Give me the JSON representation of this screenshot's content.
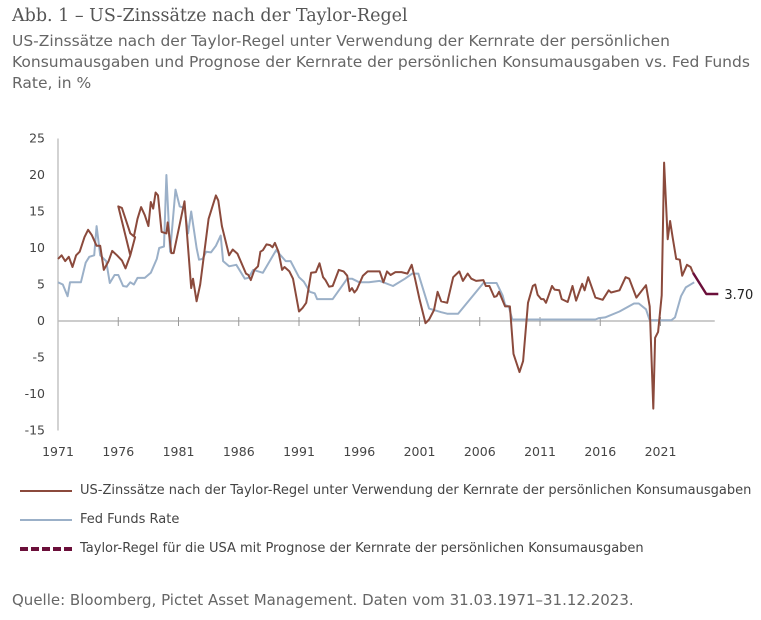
{
  "title": "Abb. 1 – US-Zinssätze nach der Taylor-Regel",
  "subtitle": "US-Zinssätze nach der Taylor-Regel unter Verwendung der Kernrate der persönlichen Konsumausgaben und Prognose der Kernrate der persönlichen Konsumausgaben vs. Fed Funds Rate, in %",
  "source": "Quelle: Bloomberg, Pictet Asset Management. Daten vom 31.03.1971–31.12.2023.",
  "chart_data": {
    "type": "line",
    "title": "Abb. 1 – US-Zinssätze nach der Taylor-Regel",
    "xlabel": "",
    "ylabel": "",
    "xlim": [
      1971,
      2026
    ],
    "ylim": [
      -15,
      25
    ],
    "x_ticks": [
      "1971",
      "1976",
      "1981",
      "1986",
      "1991",
      "1996",
      "2001",
      "2006",
      "2011",
      "2016",
      "2021"
    ],
    "y_ticks": [
      "25",
      "20",
      "15",
      "10",
      "5",
      "0",
      "-5",
      "-10",
      "-15"
    ],
    "grid": false,
    "legend_placement": "bottom",
    "end_label": "3.70",
    "series": [
      {
        "name": "US-Zinssätze nach der Taylor-Regel unter Verwendung der Kernrate der persönlichen Konsumausgaben",
        "color": "#8b4a3c",
        "style": "solid",
        "points": [
          [
            1971.0,
            8.5
          ],
          [
            1971.3,
            9
          ],
          [
            1971.6,
            8.2
          ],
          [
            1971.9,
            8.8
          ],
          [
            1972.2,
            7.4
          ],
          [
            1972.5,
            9
          ],
          [
            1972.8,
            9.5
          ],
          [
            1973.2,
            11.5
          ],
          [
            1973.5,
            12.5
          ],
          [
            1973.8,
            11.8
          ],
          [
            1974.2,
            10.3
          ],
          [
            1974.5,
            10.3
          ],
          [
            1974.8,
            7
          ],
          [
            1975.2,
            8.2
          ],
          [
            1975.5,
            9.6
          ],
          [
            1975.9,
            9
          ],
          [
            1976.3,
            8.3
          ],
          [
            1976.6,
            7.2
          ],
          [
            1977.0,
            9
          ],
          [
            1977.4,
            11.5
          ],
          [
            1977.0,
            9
          ],
          [
            1976.0,
            15.7
          ],
          [
            1976.3,
            15.5
          ],
          [
            1976.7,
            13.5
          ],
          [
            1977.0,
            12
          ],
          [
            1977.3,
            11.6
          ],
          [
            1977.6,
            14
          ],
          [
            1977.9,
            15.6
          ],
          [
            1978.2,
            14.5
          ],
          [
            1978.5,
            13
          ],
          [
            1978.7,
            16.3
          ],
          [
            1978.9,
            15.4
          ],
          [
            1979.1,
            17.6
          ],
          [
            1979.3,
            17.2
          ],
          [
            1979.6,
            12.2
          ],
          [
            1980.0,
            12.0
          ],
          [
            1980.1,
            13.5
          ],
          [
            1980.4,
            9.3
          ],
          [
            1980.6,
            9.3
          ],
          [
            1981.5,
            16.4
          ],
          [
            1982.05,
            4.5
          ],
          [
            1982.2,
            5.8
          ],
          [
            1982.5,
            2.7
          ],
          [
            1982.8,
            5
          ],
          [
            1983.5,
            14
          ],
          [
            1984.1,
            17.2
          ],
          [
            1984.3,
            16.5
          ],
          [
            1984.6,
            13
          ],
          [
            1985.2,
            9
          ],
          [
            1985.5,
            9.8
          ],
          [
            1985.9,
            9.2
          ],
          [
            1986.6,
            6.5
          ],
          [
            1986.8,
            6.3
          ],
          [
            1987.0,
            5.6
          ],
          [
            1987.3,
            7
          ],
          [
            1987.6,
            7.5
          ],
          [
            1987.8,
            9.5
          ],
          [
            1988.0,
            9.7
          ],
          [
            1988.3,
            10.5
          ],
          [
            1988.6,
            10.4
          ],
          [
            1988.8,
            10.1
          ],
          [
            1989.0,
            10.7
          ],
          [
            1989.3,
            9.5
          ],
          [
            1989.6,
            7
          ],
          [
            1989.8,
            7.4
          ],
          [
            1990.2,
            6.8
          ],
          [
            1990.5,
            5.8
          ],
          [
            1991.0,
            1.3
          ],
          [
            1991.3,
            1.8
          ],
          [
            1991.6,
            2.5
          ],
          [
            1992.0,
            6.6
          ],
          [
            1992.4,
            6.7
          ],
          [
            1992.7,
            7.9
          ],
          [
            1993.0,
            6
          ],
          [
            1993.2,
            5.6
          ],
          [
            1993.5,
            4.7
          ],
          [
            1993.8,
            4.8
          ],
          [
            1994.3,
            7
          ],
          [
            1994.7,
            6.8
          ],
          [
            1995.0,
            6.2
          ],
          [
            1995.2,
            4.1
          ],
          [
            1995.4,
            4.5
          ],
          [
            1995.6,
            3.9
          ],
          [
            1995.8,
            4.3
          ],
          [
            1996.3,
            6.2
          ],
          [
            1996.7,
            6.8
          ],
          [
            1997.7,
            6.8
          ],
          [
            1998.0,
            5.3
          ],
          [
            1998.3,
            6.8
          ],
          [
            1998.6,
            6.3
          ],
          [
            1999.0,
            6.7
          ],
          [
            1999.5,
            6.7
          ],
          [
            2000.0,
            6.5
          ],
          [
            2000.35,
            7.7
          ],
          [
            2000.6,
            6
          ],
          [
            2001.0,
            3
          ],
          [
            2001.5,
            -0.3
          ],
          [
            2001.8,
            0.2
          ],
          [
            2002.2,
            1.5
          ],
          [
            2002.5,
            4
          ],
          [
            2002.8,
            2.7
          ],
          [
            2003.3,
            2.5
          ],
          [
            2003.8,
            6
          ],
          [
            2004.3,
            6.8
          ],
          [
            2004.6,
            5.5
          ],
          [
            2005.0,
            6.5
          ],
          [
            2005.3,
            5.8
          ],
          [
            2005.7,
            5.5
          ],
          [
            2006.3,
            5.6
          ],
          [
            2006.5,
            4.8
          ],
          [
            2006.8,
            4.8
          ],
          [
            2007.2,
            3.3
          ],
          [
            2007.4,
            3.4
          ],
          [
            2007.6,
            4
          ],
          [
            2008.1,
            2
          ],
          [
            2008.5,
            2
          ],
          [
            2008.8,
            -4.5
          ],
          [
            2009.3,
            -7
          ],
          [
            2009.6,
            -5.5
          ],
          [
            2010.0,
            2.5
          ],
          [
            2010.4,
            4.8
          ],
          [
            2010.6,
            5
          ],
          [
            2010.8,
            3.6
          ],
          [
            2011.1,
            3
          ],
          [
            2011.3,
            3
          ],
          [
            2011.5,
            2.5
          ],
          [
            2012.0,
            4.8
          ],
          [
            2012.2,
            4.3
          ],
          [
            2012.6,
            4.2
          ],
          [
            2012.8,
            3
          ],
          [
            2013.3,
            2.6
          ],
          [
            2013.7,
            4.8
          ],
          [
            2014.0,
            2.8
          ],
          [
            2014.5,
            5.1
          ],
          [
            2014.7,
            4.2
          ],
          [
            2015.0,
            6
          ],
          [
            2015.6,
            3.2
          ],
          [
            2016.2,
            2.9
          ],
          [
            2016.7,
            4.2
          ],
          [
            2016.9,
            3.9
          ],
          [
            2017.6,
            4.2
          ],
          [
            2018.1,
            6
          ],
          [
            2018.4,
            5.8
          ],
          [
            2019.0,
            3.2
          ],
          [
            2019.8,
            4.9
          ],
          [
            2020.1,
            2
          ],
          [
            2020.4,
            -12
          ],
          [
            2020.55,
            -2.3
          ],
          [
            2020.8,
            -1.5
          ],
          [
            2021.1,
            3.5
          ],
          [
            2021.3,
            21.7
          ],
          [
            2021.6,
            11.2
          ],
          [
            2021.8,
            13.7
          ],
          [
            2022.0,
            11.5
          ],
          [
            2022.3,
            8.5
          ],
          [
            2022.6,
            8.4
          ],
          [
            2022.8,
            6.2
          ],
          [
            2023.2,
            7.7
          ],
          [
            2023.5,
            7.4
          ],
          [
            2023.7,
            6.6
          ]
        ]
      },
      {
        "name": "Fed Funds Rate",
        "color": "#9bb0c8",
        "style": "solid",
        "points": [
          [
            1971.0,
            5.3
          ],
          [
            1971.4,
            5.0
          ],
          [
            1971.8,
            3.4
          ],
          [
            1972.0,
            5.3
          ],
          [
            1972.9,
            5.3
          ],
          [
            1973.3,
            8
          ],
          [
            1973.6,
            8.8
          ],
          [
            1974.0,
            9
          ],
          [
            1974.2,
            13
          ],
          [
            1974.5,
            9
          ],
          [
            1975.0,
            8.2
          ],
          [
            1975.3,
            5.2
          ],
          [
            1975.7,
            6.3
          ],
          [
            1976.0,
            6.3
          ],
          [
            1976.4,
            4.8
          ],
          [
            1976.7,
            4.7
          ],
          [
            1977.0,
            5.3
          ],
          [
            1977.3,
            5.0
          ],
          [
            1977.6,
            5.9
          ],
          [
            1978.2,
            5.9
          ],
          [
            1978.7,
            6.6
          ],
          [
            1979.2,
            8.5
          ],
          [
            1979.4,
            10
          ],
          [
            1979.8,
            10.2
          ],
          [
            1980.0,
            20
          ],
          [
            1980.3,
            9.5
          ],
          [
            1980.75,
            18
          ],
          [
            1981.1,
            15.7
          ],
          [
            1981.5,
            15.5
          ],
          [
            1981.8,
            12
          ],
          [
            1982.05,
            15
          ],
          [
            1982.5,
            10
          ],
          [
            1982.7,
            8.4
          ],
          [
            1983.0,
            8.5
          ],
          [
            1983.3,
            9.5
          ],
          [
            1983.7,
            9.4
          ],
          [
            1984.1,
            10.3
          ],
          [
            1984.5,
            11.7
          ],
          [
            1984.7,
            8.2
          ],
          [
            1985.2,
            7.5
          ],
          [
            1985.8,
            7.7
          ],
          [
            1986.5,
            5.8
          ],
          [
            1986.8,
            5.9
          ],
          [
            1987.2,
            7
          ],
          [
            1988.0,
            6.6
          ],
          [
            1989.1,
            9.7
          ],
          [
            1989.9,
            8.2
          ],
          [
            1990.3,
            8.2
          ],
          [
            1991.0,
            6
          ],
          [
            1991.4,
            5.4
          ],
          [
            1991.9,
            4
          ],
          [
            1992.3,
            3.8
          ],
          [
            1992.5,
            3.0
          ],
          [
            1993.8,
            3.0
          ],
          [
            1995.0,
            5.8
          ],
          [
            1995.4,
            5.8
          ],
          [
            1996.0,
            5.3
          ],
          [
            1996.8,
            5.3
          ],
          [
            1997.7,
            5.5
          ],
          [
            1998.8,
            4.8
          ],
          [
            1999.8,
            5.8
          ],
          [
            2000.4,
            6.5
          ],
          [
            2000.9,
            6.5
          ],
          [
            2001.8,
            1.7
          ],
          [
            2002.8,
            1.2
          ],
          [
            2003.3,
            1.0
          ],
          [
            2004.2,
            1.0
          ],
          [
            2006.3,
            5.2
          ],
          [
            2007.4,
            5.2
          ],
          [
            2007.9,
            3.5
          ],
          [
            2008.1,
            2.2
          ],
          [
            2008.4,
            2.0
          ],
          [
            2008.7,
            0.2
          ],
          [
            2015.6,
            0.2
          ],
          [
            2015.9,
            0.4
          ],
          [
            2016.4,
            0.5
          ],
          [
            2017.6,
            1.3
          ],
          [
            2018.8,
            2.4
          ],
          [
            2019.2,
            2.4
          ],
          [
            2019.8,
            1.6
          ],
          [
            2020.1,
            0.1
          ],
          [
            2021.9,
            0.1
          ],
          [
            2022.2,
            0.5
          ],
          [
            2022.7,
            3.4
          ],
          [
            2023.1,
            4.6
          ],
          [
            2023.8,
            5.3
          ]
        ]
      },
      {
        "name": "Taylor-Regel für die USA mit Prognose der Kernrate der persönlichen Konsumausgaben",
        "color": "#6b0f3a",
        "style": "dashed",
        "points": [
          [
            2023.7,
            6.6
          ],
          [
            2024.8,
            3.7
          ],
          [
            2025.8,
            3.7
          ]
        ]
      }
    ]
  }
}
